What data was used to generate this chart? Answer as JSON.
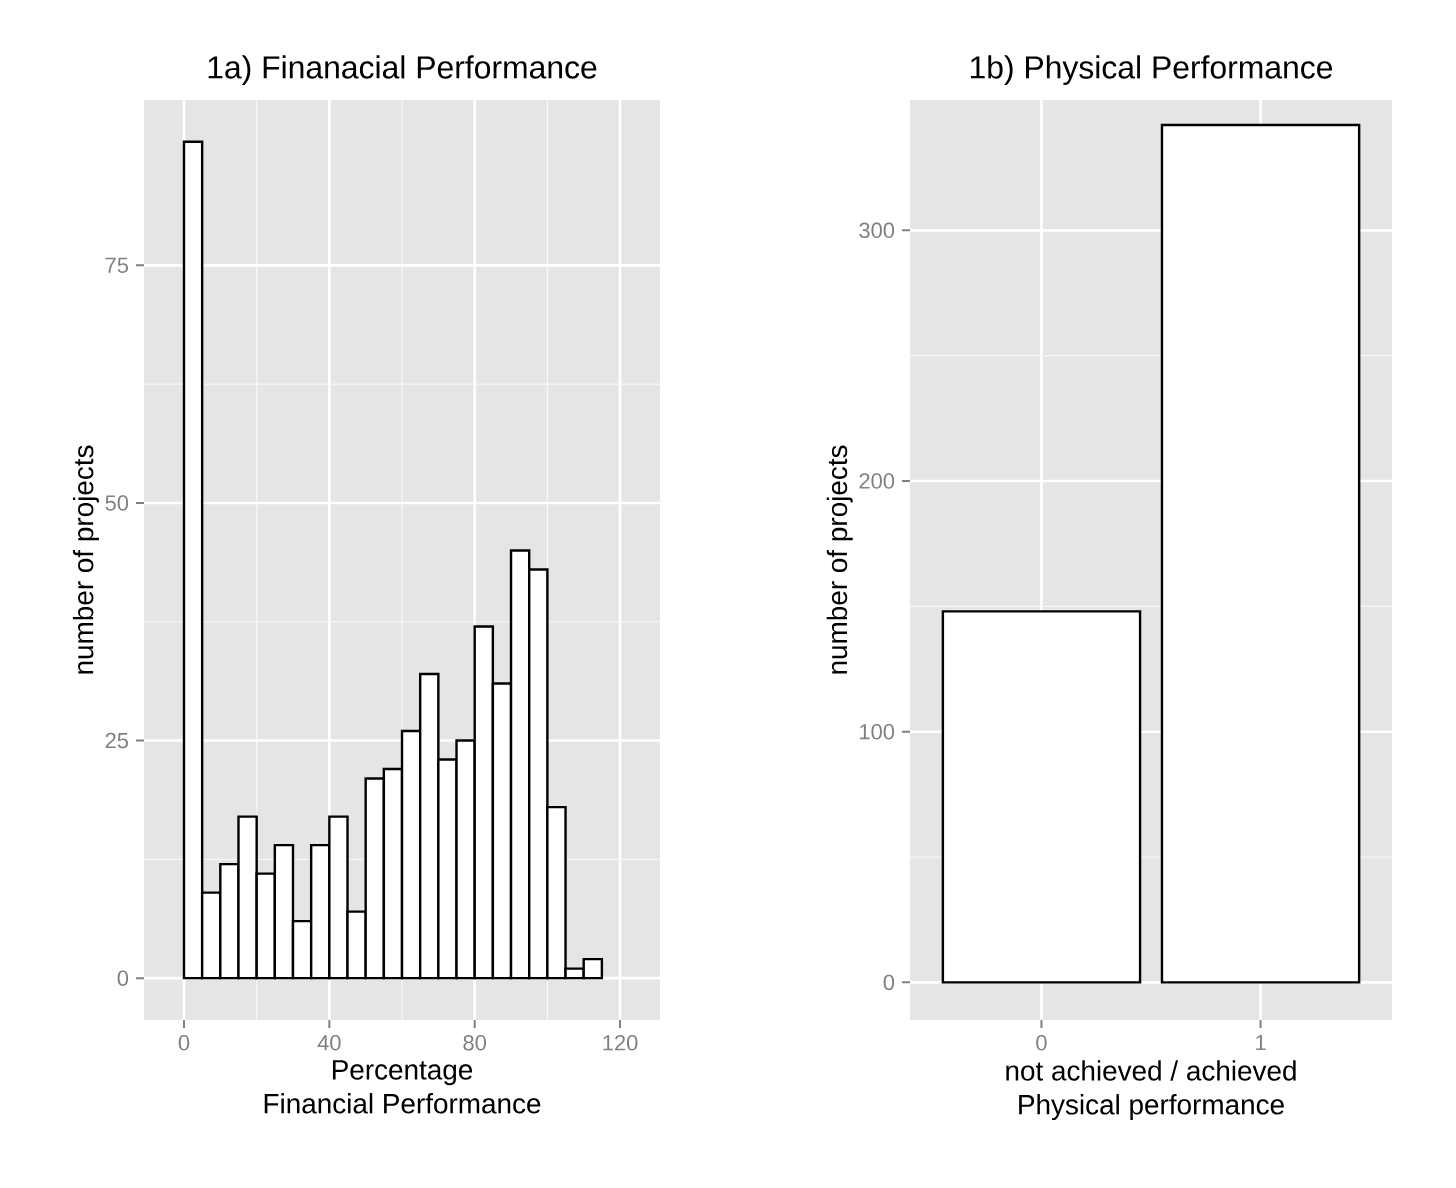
{
  "chart_data": [
    {
      "type": "histogram",
      "title": "1a) Finanacial Performance",
      "xlabel": "Percentage\nFinancial Performance",
      "ylabel": "number of projects",
      "color": "#ffffff",
      "bins": [
        0,
        5,
        10,
        15,
        20,
        25,
        30,
        35,
        40,
        45,
        50,
        55,
        60,
        65,
        70,
        75,
        80,
        85,
        90,
        95,
        100,
        105,
        110,
        115
      ],
      "values": [
        88,
        9,
        12,
        17,
        11,
        14,
        6,
        14,
        17,
        7,
        21,
        22,
        26,
        32,
        23,
        25,
        37,
        31,
        45,
        43,
        18,
        1,
        2
      ],
      "xlim": [
        -11,
        131
      ],
      "ylim": [
        -4.4,
        92.4
      ],
      "xticks": [
        0,
        40,
        80,
        120
      ],
      "yticks": [
        0,
        25,
        50,
        75
      ],
      "grid": true
    },
    {
      "type": "bar",
      "title": "1b) Physical Performance",
      "xlabel": "not achieved / achieved\nPhysical performance",
      "ylabel": "number of projects",
      "color": "#ffffff",
      "categories": [
        "0",
        "1"
      ],
      "values": [
        148,
        342
      ],
      "ylim": [
        -15,
        352
      ],
      "yticks": [
        0,
        100,
        200,
        300
      ],
      "grid": true
    }
  ]
}
